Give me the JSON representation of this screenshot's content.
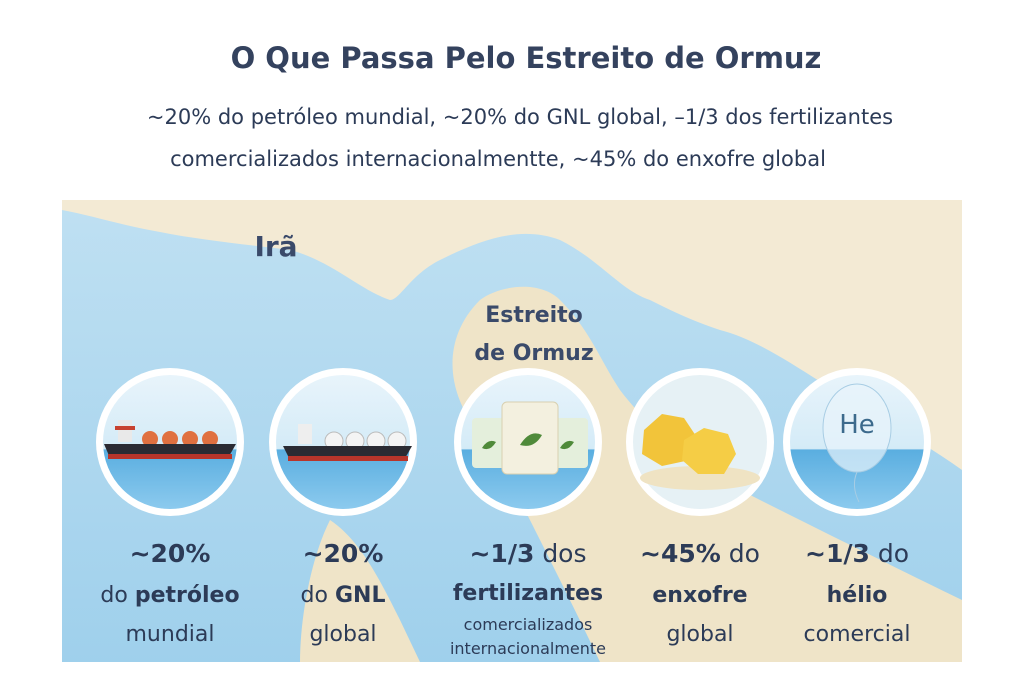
{
  "title": "O Que Passa Pelo Estreito de Ormuz",
  "subtitle": [
    "~20% do petróleo mundial, ~20% do GNL global, –1/3 dos fertilizantes",
    "comercializados internacionalmentte, ~45% do enxofre global"
  ],
  "map_labels": {
    "country": "Irã",
    "strait": [
      "Estreito",
      "de Ormuz"
    ]
  },
  "items": [
    {
      "lines": [
        [
          "~20%"
        ],
        [
          "do",
          "petróleo"
        ],
        [
          "mundial"
        ]
      ]
    },
    {
      "lines": [
        [
          "~20%"
        ],
        [
          "do",
          "GNL"
        ],
        [
          "global"
        ]
      ]
    },
    {
      "lines": [
        [
          "~1/3",
          "dos"
        ],
        [
          "fertilizantes"
        ],
        [
          "comercializados"
        ],
        [
          "internacionalmente"
        ]
      ]
    },
    {
      "lines": [
        [
          "~45%",
          "do"
        ],
        [
          "enxofre"
        ],
        [
          "global"
        ]
      ]
    },
    {
      "icon_label": "He",
      "lines": [
        [
          "~1/3",
          "do"
        ],
        [
          "hélio"
        ],
        [
          "comercial"
        ]
      ]
    }
  ]
}
